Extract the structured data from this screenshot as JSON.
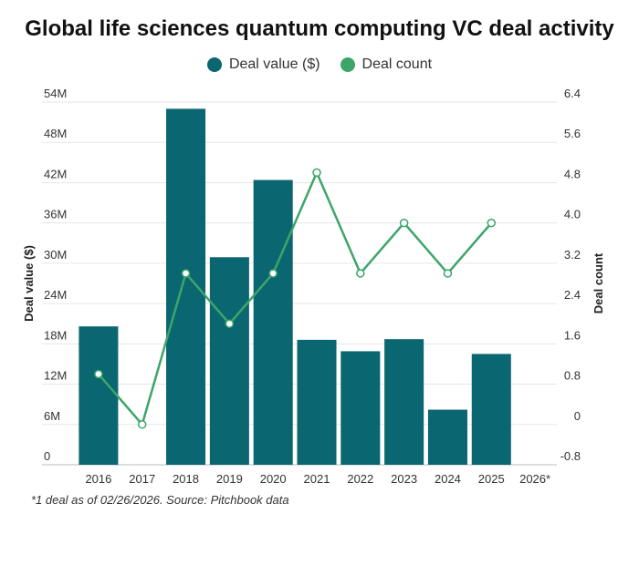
{
  "chart_data": {
    "type": "bar+line",
    "title": "Global life sciences quantum computing VC deal activity",
    "categories": [
      "2016",
      "2017",
      "2018",
      "2019",
      "2020",
      "2021",
      "2022",
      "2023",
      "2024",
      "2025",
      "2026*"
    ],
    "series": [
      {
        "name": "Deal value ($)",
        "type": "bar",
        "axis": "left",
        "color": "#0a6670",
        "values": [
          20.6,
          0,
          53.0,
          30.9,
          42.4,
          18.6,
          16.9,
          18.7,
          8.2,
          16.5,
          null
        ]
      },
      {
        "name": "Deal count",
        "type": "line",
        "axis": "right",
        "color": "#3da56a",
        "values": [
          1,
          0,
          3,
          2,
          3,
          5,
          3,
          4,
          3,
          4,
          null
        ]
      }
    ],
    "left_axis": {
      "label": "Deal value ($)",
      "ylim": [
        0,
        54
      ],
      "ticks": [
        0,
        6,
        12,
        18,
        24,
        30,
        36,
        42,
        48,
        54
      ],
      "tick_labels": [
        "0",
        "6M",
        "12M",
        "18M",
        "24M",
        "30M",
        "36M",
        "42M",
        "48M",
        "54M"
      ]
    },
    "right_axis": {
      "label": "Deal count",
      "ylim": [
        -0.8,
        6.4
      ],
      "ticks": [
        -0.8,
        0,
        0.8,
        1.6,
        2.4,
        3.2,
        4.0,
        4.8,
        5.6,
        6.4
      ],
      "tick_labels": [
        "-0.8",
        "0",
        "0.8",
        "1.6",
        "2.4",
        "3.2",
        "4.0",
        "4.8",
        "5.6",
        "6.4"
      ]
    },
    "grid": true,
    "legend_position": "top-center",
    "footnote": "*1 deal as of 02/26/2026. Source: Pitchbook data"
  }
}
